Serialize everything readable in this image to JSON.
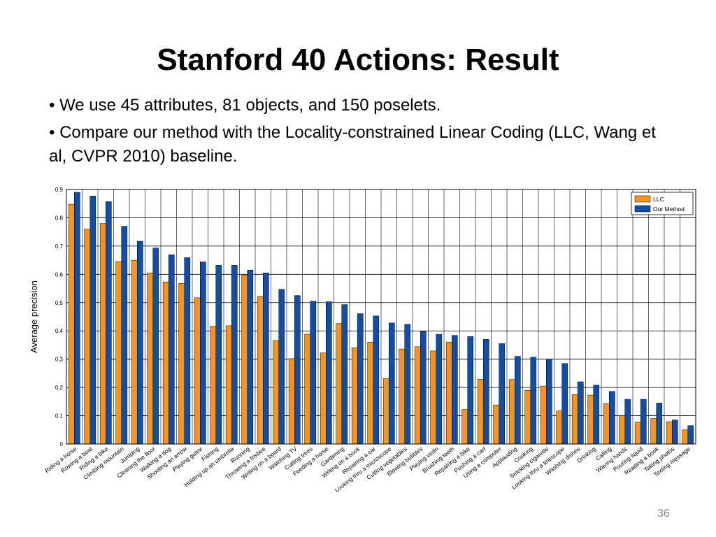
{
  "slide": {
    "title": "Stanford 40 Actions: Result",
    "bullets": [
      "• We use 45 attributes, 81 objects, and 150 poselets.",
      "• Compare our method with the Locality-constrained Linear Coding (LLC, Wang et al, CVPR 2010) baseline."
    ],
    "page_number": "36"
  },
  "colors": {
    "llc": "#F7941D",
    "ours": "#0F4FA8",
    "grid": "#000000"
  },
  "chart_data": {
    "type": "bar",
    "title": "",
    "xlabel": "",
    "ylabel": "Average precision",
    "ylim": [
      0,
      0.9
    ],
    "yticks": [
      0,
      0.1,
      0.2,
      0.3,
      0.4,
      0.5,
      0.6,
      0.7,
      0.8,
      0.9
    ],
    "ytick_labels": [
      "0",
      "0.1",
      "0.2",
      "0.3",
      "0.4",
      "0.5",
      "0.6",
      "0.7",
      "0.8",
      "0.9"
    ],
    "grid": true,
    "legend_position": "top-right",
    "categories": [
      "Riding a horse",
      "Rowing a boat",
      "Riding a bike",
      "Climbing mountain",
      "Jumping",
      "Cleaning the floor",
      "Walking a dog",
      "Shooting an arrow",
      "Playing guitar",
      "Fishing",
      "Holding up an umbrella",
      "Running",
      "Throwing a frisbee",
      "Writing on a board",
      "Watching TV",
      "Cutting trees",
      "Feeding a horse",
      "Gardening",
      "Writing on a book",
      "Repairing a car",
      "Looking thru a microscope",
      "Cutting vegetables",
      "Blowing bubbles",
      "Playing violin",
      "Brushing teeth",
      "Repairing a bike",
      "Pushing a cart",
      "Using a computer",
      "Applauding",
      "Cooking",
      "Smoking cigarette",
      "Looking thru a telescope",
      "Washing dishes",
      "Drinking",
      "Calling",
      "Waving hands",
      "Pouring liquid",
      "Reading a book",
      "Taking photos",
      "Texting message"
    ],
    "series": [
      {
        "name": "LLC",
        "values": [
          0.848,
          0.76,
          0.78,
          0.645,
          0.65,
          0.605,
          0.573,
          0.568,
          0.517,
          0.416,
          0.418,
          0.598,
          0.522,
          0.366,
          0.302,
          0.388,
          0.322,
          0.426,
          0.34,
          0.36,
          0.231,
          0.336,
          0.344,
          0.329,
          0.36,
          0.122,
          0.229,
          0.138,
          0.228,
          0.19,
          0.205,
          0.117,
          0.175,
          0.173,
          0.143,
          0.1,
          0.077,
          0.09,
          0.079,
          0.05
        ]
      },
      {
        "name": "Our Method",
        "values": [
          0.89,
          0.877,
          0.857,
          0.77,
          0.717,
          0.693,
          0.669,
          0.659,
          0.644,
          0.632,
          0.632,
          0.615,
          0.605,
          0.547,
          0.525,
          0.505,
          0.503,
          0.493,
          0.461,
          0.453,
          0.428,
          0.423,
          0.399,
          0.388,
          0.384,
          0.38,
          0.37,
          0.355,
          0.31,
          0.307,
          0.3,
          0.285,
          0.22,
          0.208,
          0.186,
          0.158,
          0.158,
          0.145,
          0.085,
          0.065
        ]
      }
    ]
  }
}
